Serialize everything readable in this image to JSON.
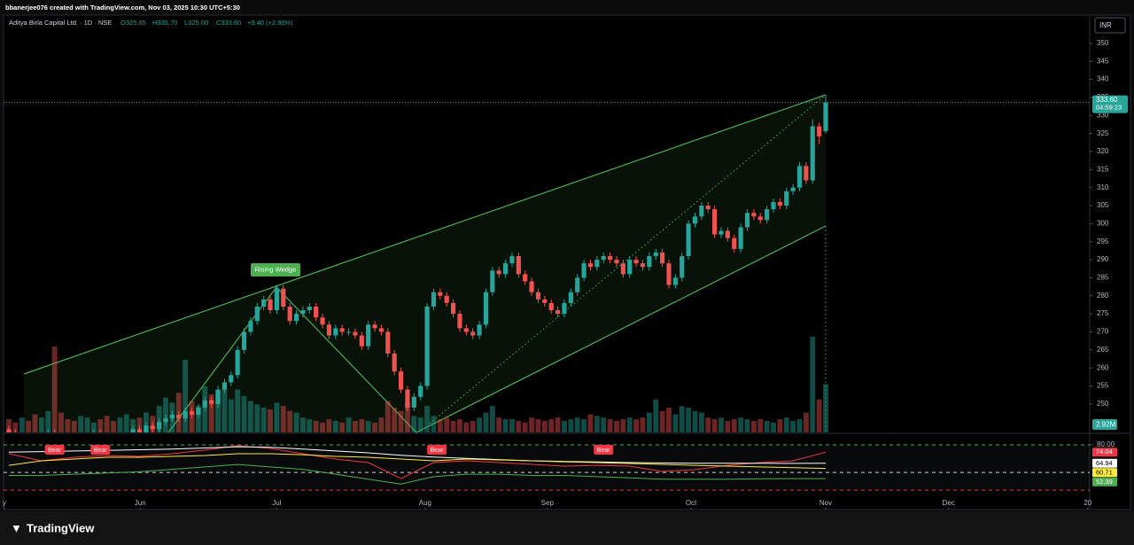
{
  "header": {
    "credit": "bbanerjee076 created with TradingView.com, Nov 03, 2025 10:30 UTC+5:30",
    "brand": "TradingView"
  },
  "chart_data": {
    "type": "candlestick",
    "symbol": "Aditya Birla Capital Ltd. · 1D · NSE",
    "ohlc_labels": {
      "open": "O325.65",
      "high": "H335.70",
      "low": "L325.00",
      "close": "C333.60",
      "change": "+9.40 (+2.90%)"
    },
    "currency": "INR",
    "up_color": "#26a69a",
    "down_color": "#ef5350",
    "open": [
      243,
      242,
      240,
      241,
      239,
      238,
      240,
      242,
      241,
      239,
      238,
      237,
      239,
      240,
      242,
      241,
      240,
      238,
      239,
      241,
      243,
      242,
      244,
      243,
      245,
      246,
      247,
      246,
      248,
      247,
      249,
      251,
      250,
      254,
      256,
      258,
      265,
      270,
      273,
      277,
      279,
      276,
      282,
      277,
      273,
      275,
      276,
      277,
      274,
      272,
      269,
      271,
      270,
      270,
      269,
      266,
      272,
      271,
      270,
      264,
      259,
      254,
      249,
      252,
      255,
      277,
      281,
      280,
      278,
      275,
      271,
      270,
      269,
      272,
      281,
      287,
      286,
      289,
      291,
      286,
      284,
      281,
      279,
      278,
      276,
      275,
      278,
      281,
      285,
      289,
      288,
      290,
      291,
      290,
      289,
      286,
      290,
      289,
      288,
      291,
      292,
      289,
      283,
      285,
      291,
      300,
      302,
      305,
      304,
      297,
      298,
      296,
      293,
      299,
      303,
      302,
      301,
      304,
      306,
      305,
      309,
      310,
      316,
      312,
      327,
      325.65
    ],
    "high": [
      244,
      243,
      242,
      242,
      240,
      241,
      243,
      243,
      242,
      240,
      239,
      240,
      241,
      243,
      243,
      242,
      241,
      240,
      242,
      244,
      244,
      245,
      245,
      246,
      247,
      248,
      248,
      249,
      249,
      250,
      252,
      252,
      255,
      257,
      259,
      266,
      271,
      274,
      278,
      280,
      280,
      283,
      283,
      278,
      276,
      277,
      278,
      278,
      275,
      273,
      272,
      272,
      271,
      271,
      270,
      273,
      273,
      272,
      271,
      265,
      260,
      255,
      253,
      256,
      278,
      282,
      282,
      281,
      279,
      276,
      272,
      271,
      273,
      282,
      288,
      288,
      290,
      292,
      292,
      287,
      285,
      282,
      280,
      279,
      277,
      279,
      282,
      286,
      290,
      290,
      291,
      292,
      292,
      291,
      290,
      291,
      291,
      290,
      292,
      293,
      293,
      290,
      286,
      292,
      301,
      303,
      306,
      306,
      305,
      299,
      299,
      297,
      300,
      304,
      304,
      303,
      305,
      307,
      307,
      310,
      311,
      317,
      317,
      329,
      328,
      335.7
    ],
    "low": [
      241,
      239,
      239,
      238,
      237,
      237,
      239,
      240,
      238,
      237,
      236,
      236,
      238,
      239,
      240,
      239,
      237,
      237,
      238,
      240,
      241,
      241,
      242,
      242,
      244,
      245,
      245,
      245,
      246,
      246,
      248,
      249,
      249,
      253,
      255,
      257,
      264,
      269,
      272,
      276,
      275,
      275,
      276,
      272,
      272,
      274,
      275,
      273,
      271,
      268,
      268,
      269,
      269,
      268,
      265,
      265,
      270,
      269,
      263,
      258,
      253,
      248,
      248,
      251,
      254,
      276,
      279,
      277,
      274,
      270,
      269,
      268,
      268,
      271,
      280,
      285,
      285,
      288,
      285,
      283,
      280,
      278,
      277,
      275,
      274,
      274,
      277,
      280,
      284,
      287,
      287,
      289,
      289,
      288,
      285,
      285,
      288,
      287,
      287,
      290,
      288,
      282,
      282,
      284,
      290,
      299,
      301,
      303,
      296,
      296,
      295,
      292,
      292,
      298,
      301,
      300,
      300,
      303,
      304,
      304,
      308,
      309,
      311,
      311,
      322,
      325
    ],
    "close": [
      242,
      240,
      241,
      239,
      238,
      240,
      242,
      241,
      239,
      238,
      237,
      239,
      240,
      242,
      241,
      240,
      238,
      239,
      241,
      243,
      242,
      244,
      243,
      245,
      246,
      247,
      246,
      248,
      247,
      249,
      251,
      250,
      254,
      256,
      258,
      265,
      270,
      273,
      277,
      279,
      276,
      282,
      277,
      273,
      275,
      276,
      277,
      274,
      272,
      269,
      271,
      270,
      270,
      269,
      266,
      272,
      271,
      270,
      264,
      259,
      254,
      249,
      252,
      255,
      277,
      281,
      280,
      278,
      275,
      271,
      270,
      269,
      272,
      281,
      287,
      286,
      289,
      291,
      286,
      284,
      281,
      279,
      278,
      276,
      275,
      278,
      281,
      285,
      289,
      288,
      290,
      291,
      290,
      289,
      286,
      290,
      289,
      288,
      291,
      292,
      289,
      283,
      285,
      291,
      300,
      302,
      305,
      304,
      297,
      298,
      296,
      293,
      299,
      303,
      302,
      301,
      304,
      306,
      305,
      309,
      310,
      316,
      312,
      327,
      324.2,
      333.6
    ],
    "volume": [
      0.8,
      0.6,
      0.9,
      0.7,
      1.1,
      0.9,
      1.3,
      5.2,
      1.2,
      0.8,
      0.7,
      1.0,
      0.9,
      0.6,
      0.8,
      1.0,
      0.7,
      0.9,
      1.1,
      0.8,
      0.9,
      1.2,
      1.0,
      1.6,
      2.1,
      1.8,
      2.4,
      4.4,
      1.9,
      1.6,
      2.8,
      2.3,
      2.5,
      2.7,
      2.0,
      2.6,
      2.2,
      1.9,
      1.7,
      1.5,
      1.4,
      1.8,
      1.6,
      1.3,
      1.2,
      0.9,
      0.8,
      0.7,
      0.6,
      0.8,
      0.7,
      0.6,
      0.9,
      0.7,
      0.8,
      0.7,
      0.6,
      0.9,
      1.9,
      1.5,
      1.3,
      1.8,
      1.0,
      0.9,
      1.6,
      1.0,
      0.8,
      0.9,
      0.7,
      0.8,
      0.6,
      0.7,
      0.9,
      1.2,
      1.6,
      0.9,
      0.8,
      0.8,
      0.7,
      0.6,
      0.9,
      0.8,
      0.7,
      0.8,
      0.9,
      0.7,
      0.8,
      0.9,
      0.8,
      1.1,
      1.0,
      0.9,
      0.8,
      0.7,
      0.8,
      0.9,
      0.8,
      0.9,
      1.2,
      2.0,
      1.3,
      1.5,
      1.1,
      1.6,
      1.5,
      1.3,
      1.2,
      0.9,
      0.8,
      0.9,
      0.7,
      0.8,
      0.9,
      0.8,
      0.7,
      0.8,
      0.7,
      0.6,
      0.8,
      0.9,
      0.7,
      0.8,
      1.2,
      5.8,
      2.0,
      2.92
    ],
    "volume_lim": [
      0,
      25.2
    ],
    "volume_label": "2.92M",
    "last_price_label": "333.60",
    "countdown": "04:59:23",
    "pattern_label": "Rising Wedge",
    "ylim": [
      242.1,
      357.6
    ],
    "yticks": [
      250,
      255,
      260,
      265,
      270,
      275,
      280,
      285,
      290,
      295,
      300,
      305,
      310,
      315,
      320,
      325,
      330,
      335,
      340,
      345,
      350
    ],
    "grid": false,
    "xlim": [
      -1.356,
      165.4
    ],
    "xticks": [
      {
        "value": -0.7,
        "label": "y"
      },
      {
        "value": 20.1,
        "label": "Jun"
      },
      {
        "value": 41,
        "label": "Jul"
      },
      {
        "value": 63.7,
        "label": "Aug"
      },
      {
        "value": 82.4,
        "label": "Sep"
      },
      {
        "value": 104.4,
        "label": "Oct"
      },
      {
        "value": 125,
        "label": "Nov"
      },
      {
        "value": 143.8,
        "label": "Dec"
      },
      {
        "value": 165.1,
        "label": "20"
      }
    ],
    "indicator": {
      "ylim": [
        38,
        88.7
      ],
      "yticks": [
        {
          "value": 80,
          "label": "80.00"
        }
      ],
      "levels": [
        {
          "value": 80,
          "color": "#4caf50"
        },
        {
          "value": 57.5,
          "color": "#d1d4dc"
        },
        {
          "value": 43,
          "color": "#f23645"
        }
      ],
      "x": [
        0,
        5,
        10,
        15,
        20,
        25,
        30,
        35,
        40,
        45,
        50,
        55,
        60,
        65,
        70,
        75,
        80,
        85,
        90,
        95,
        100,
        105,
        110,
        115,
        120,
        125
      ],
      "series": [
        {
          "color": "#f23645",
          "values": [
            72.8,
            67.0,
            69.9,
            71.3,
            70.6,
            72.8,
            75.7,
            79.3,
            77.1,
            72.8,
            68.4,
            65.5,
            52.5,
            65.5,
            67.0,
            65.5,
            64.1,
            62.6,
            63.3,
            62.6,
            58.3,
            59.7,
            63.3,
            65.5,
            67.0,
            74.04
          ],
          "last_label": "74.04"
        },
        {
          "color": "#ffffff",
          "values": [
            74.0,
            74.5,
            75.0,
            75.5,
            76.0,
            76.5,
            77.5,
            78.5,
            78.0,
            76.5,
            75.0,
            73.5,
            71.5,
            70.0,
            69.0,
            68.0,
            67.0,
            66.5,
            66.0,
            65.5,
            65.2,
            65.0,
            65.0,
            65.0,
            64.9,
            64.94
          ],
          "last_label": "64.94"
        },
        {
          "color": "#ffeb3b",
          "values": [
            63.3,
            67.0,
            68.4,
            69.9,
            69.9,
            70.6,
            71.3,
            72.8,
            72.8,
            72.0,
            70.6,
            69.9,
            68.4,
            67.0,
            68.4,
            67.7,
            67.0,
            66.2,
            65.5,
            64.8,
            64.1,
            63.3,
            62.6,
            62.0,
            61.4,
            60.71
          ],
          "last_label": "60.71"
        },
        {
          "color": "#4caf50",
          "values": [
            55,
            55,
            56,
            57,
            58,
            60,
            62,
            64,
            62,
            60,
            56,
            52,
            48,
            54,
            56,
            56,
            55,
            55,
            54,
            53,
            52,
            52,
            52,
            52.3,
            52.4,
            52.39
          ],
          "last_label": "52.39"
        }
      ],
      "annotations": [
        {
          "text": "Bear",
          "x": 7
        },
        {
          "text": "Bear",
          "x": 14
        },
        {
          "text": "Bear",
          "x": 65.5
        },
        {
          "text": "Bear",
          "x": 91
        }
      ]
    }
  }
}
